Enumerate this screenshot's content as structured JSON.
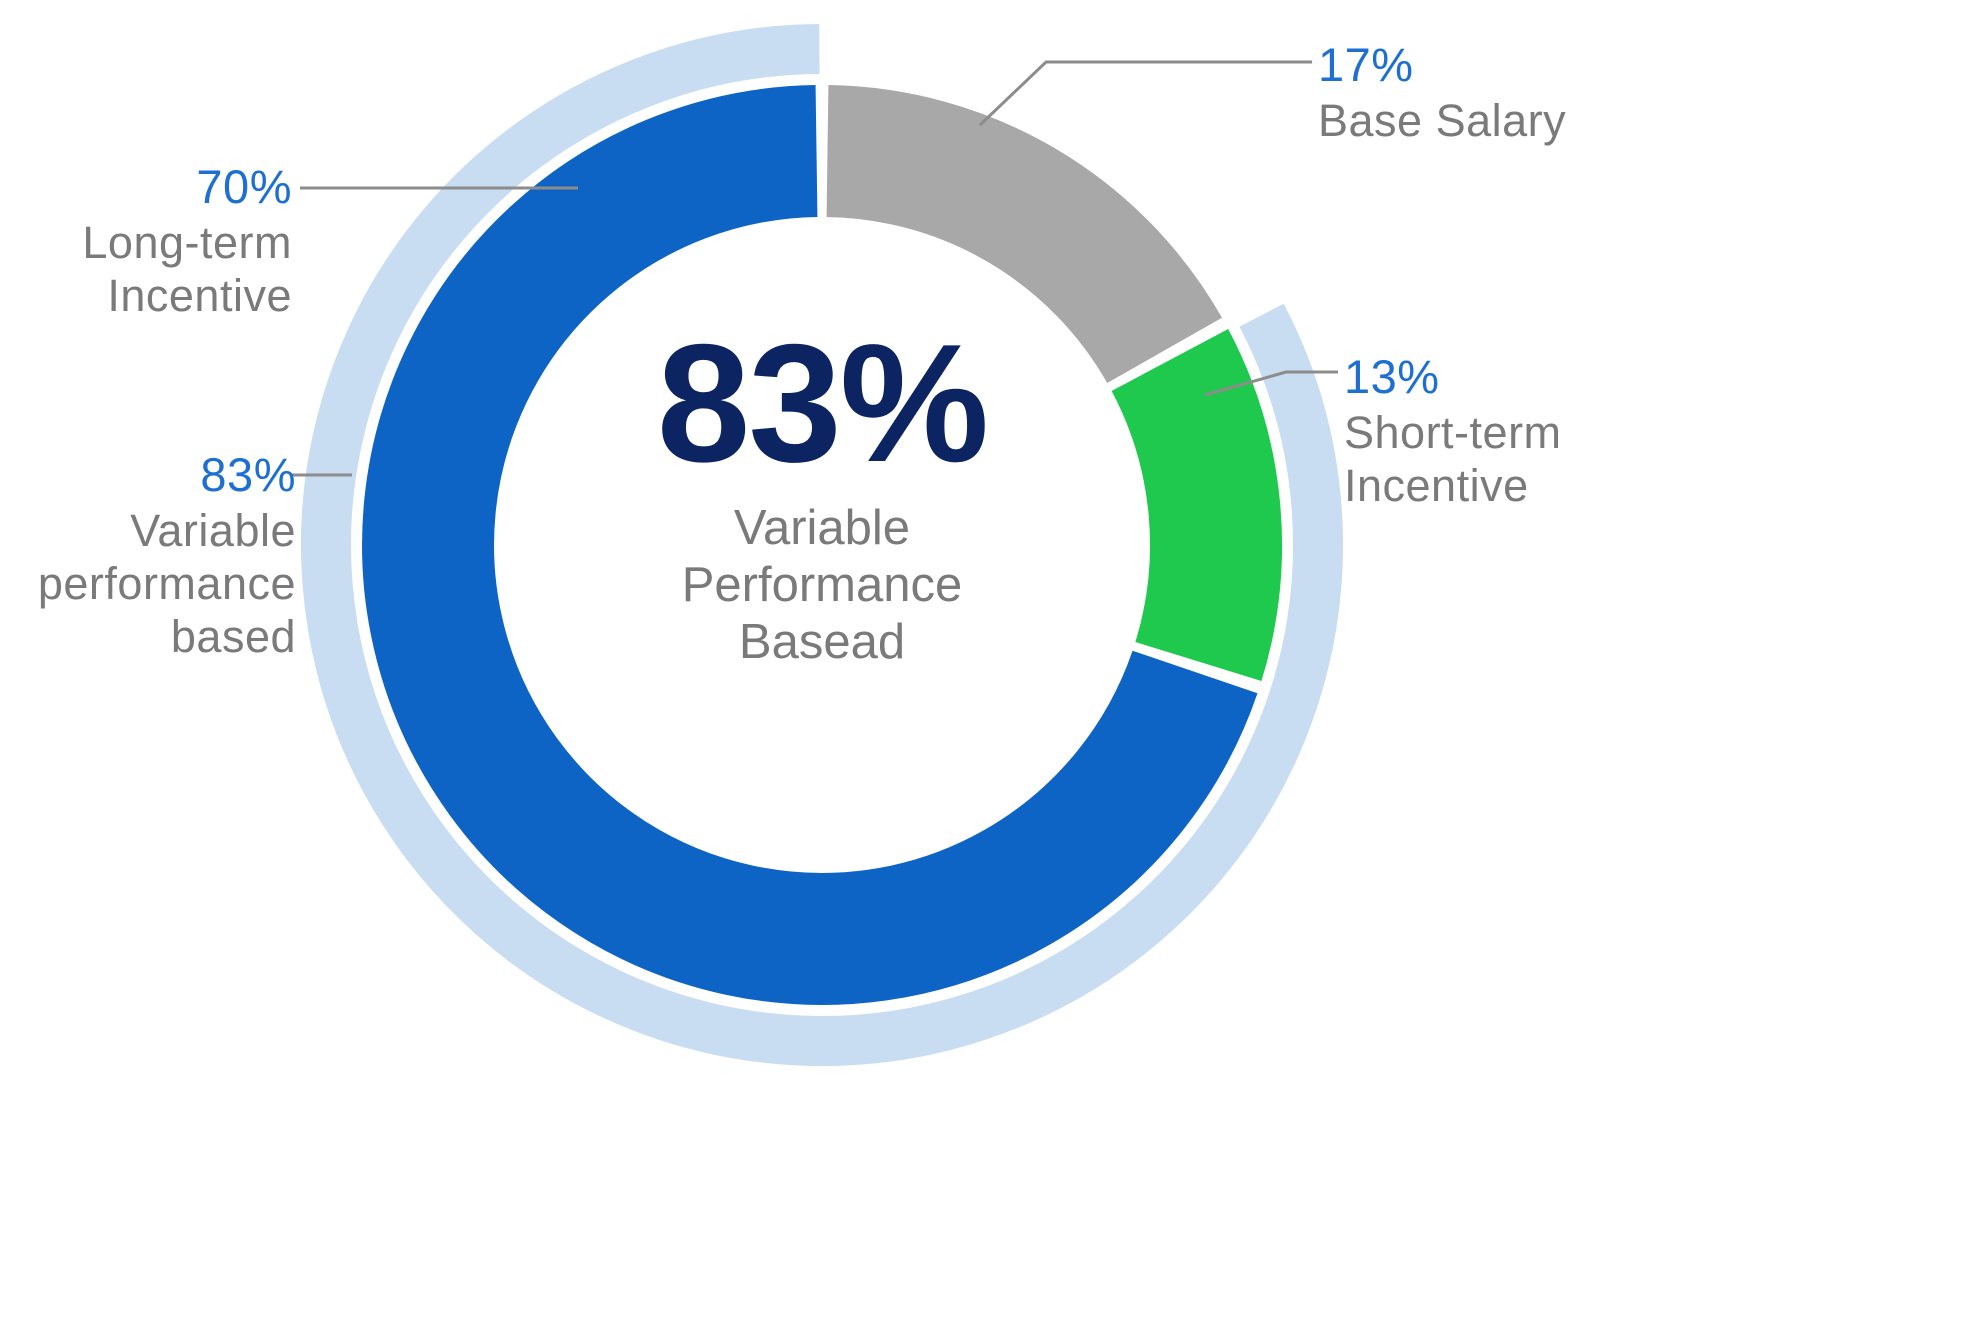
{
  "chart_data": {
    "type": "pie",
    "variant": "donut-with-outer-arc",
    "direction": "clockwise",
    "start_angle_deg": 0,
    "segments": [
      {
        "name": "Base Salary",
        "value": 17,
        "color": "#a8a8a8"
      },
      {
        "name": "Short-term Incentive",
        "value": 13,
        "color": "#1ec94e"
      },
      {
        "name": "Long-term Incentive",
        "value": 70,
        "color": "#0e64c5"
      }
    ],
    "outer_arc": {
      "name": "Variable performance based",
      "value": 83,
      "color": "#c8ddf2"
    },
    "center": {
      "value": "83%",
      "subtitle": "Variable Performance Basead"
    },
    "legend_position": "callout-labels"
  },
  "center": {
    "value": "83%",
    "line1": "Variable",
    "line2": "Performance",
    "line3": "Basead"
  },
  "labels": {
    "base_salary": {
      "pct": "17%",
      "line1": "Base Salary"
    },
    "short_term": {
      "pct": "13%",
      "line1": "Short-term",
      "line2": "Incentive"
    },
    "long_term": {
      "pct": "70%",
      "line1": "Long-term",
      "line2": "Incentive"
    },
    "variable": {
      "pct": "83%",
      "line1": "Variable",
      "line2": "performance",
      "line3": "based"
    }
  },
  "colors": {
    "segment_blue": "#0e64c5",
    "segment_green": "#1ec94e",
    "segment_gray": "#a8a8a8",
    "outer_light_blue": "#c8ddf2",
    "center_navy": "#0d2463",
    "pct_text_blue": "#1e6fd2",
    "label_text_gray": "#7a7a7a",
    "callout_line_gray": "#8c8c8c"
  }
}
